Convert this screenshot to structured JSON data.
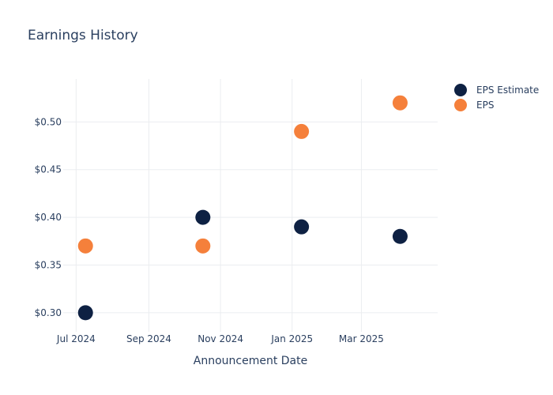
{
  "chart_data": {
    "type": "scatter",
    "title": "Earnings History",
    "xlabel": "Announcement Date",
    "ylabel": "",
    "x_ticks": [
      {
        "label": "Jul 2024",
        "date": "2024-07-01"
      },
      {
        "label": "Sep 2024",
        "date": "2024-09-01"
      },
      {
        "label": "Nov 2024",
        "date": "2024-11-01"
      },
      {
        "label": "Jan 2025",
        "date": "2025-01-01"
      },
      {
        "label": "Mar 2025",
        "date": "2025-03-01"
      }
    ],
    "y_ticks": [
      0.3,
      0.35,
      0.4,
      0.45,
      0.5
    ],
    "y_tick_format": "$0.00",
    "xlim": [
      "2024-06-20",
      "2025-05-05"
    ],
    "ylim": [
      0.28,
      0.545
    ],
    "grid": true,
    "legend_position": "top-right",
    "series": [
      {
        "name": "EPS Estimate",
        "color": "#0e2143",
        "points": [
          {
            "x": "2024-07-09",
            "y": 0.3
          },
          {
            "x": "2024-10-17",
            "y": 0.4
          },
          {
            "x": "2025-01-09",
            "y": 0.39
          },
          {
            "x": "2025-04-03",
            "y": 0.38
          }
        ]
      },
      {
        "name": "EPS",
        "color": "#f5803b",
        "points": [
          {
            "x": "2024-07-09",
            "y": 0.37
          },
          {
            "x": "2024-10-17",
            "y": 0.37
          },
          {
            "x": "2025-01-09",
            "y": 0.49
          },
          {
            "x": "2025-04-03",
            "y": 0.52
          }
        ]
      }
    ]
  }
}
